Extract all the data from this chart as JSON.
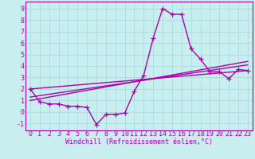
{
  "background_color": "#c8eef0",
  "grid_color": "#aadddd",
  "line_color": "#aa00aa",
  "x_labels": [
    "0",
    "1",
    "2",
    "3",
    "4",
    "5",
    "6",
    "7",
    "8",
    "9",
    "10",
    "11",
    "12",
    "13",
    "14",
    "15",
    "16",
    "17",
    "18",
    "19",
    "20",
    "21",
    "22",
    "23"
  ],
  "y_ticks": [
    -1,
    0,
    1,
    2,
    3,
    4,
    5,
    6,
    7,
    8,
    9
  ],
  "ylim": [
    -1.6,
    9.6
  ],
  "xlim": [
    -0.5,
    23.5
  ],
  "xlabel": "Windchill (Refroidissement éolien,°C)",
  "line1_x": [
    0,
    1,
    2,
    3,
    4,
    5,
    6,
    7,
    8,
    9,
    10,
    11,
    12,
    13,
    14,
    15,
    16,
    17,
    18,
    19,
    20,
    21,
    22,
    23
  ],
  "line1_y": [
    2.0,
    0.9,
    0.7,
    0.7,
    0.5,
    0.5,
    0.4,
    -1.1,
    -0.2,
    -0.2,
    -0.1,
    1.8,
    3.2,
    6.4,
    9.0,
    8.5,
    8.5,
    5.5,
    4.6,
    3.5,
    3.5,
    2.9,
    3.7,
    3.6
  ],
  "line2_x": [
    0,
    23
  ],
  "line2_y": [
    2.0,
    3.6
  ],
  "line3_x": [
    0,
    23
  ],
  "line3_y": [
    1.3,
    4.1
  ],
  "line4_x": [
    0,
    23
  ],
  "line4_y": [
    1.0,
    4.4
  ],
  "marker": "+",
  "marker_size": 4,
  "line_width": 1.0,
  "xlabel_fontsize": 6,
  "tick_fontsize": 6
}
